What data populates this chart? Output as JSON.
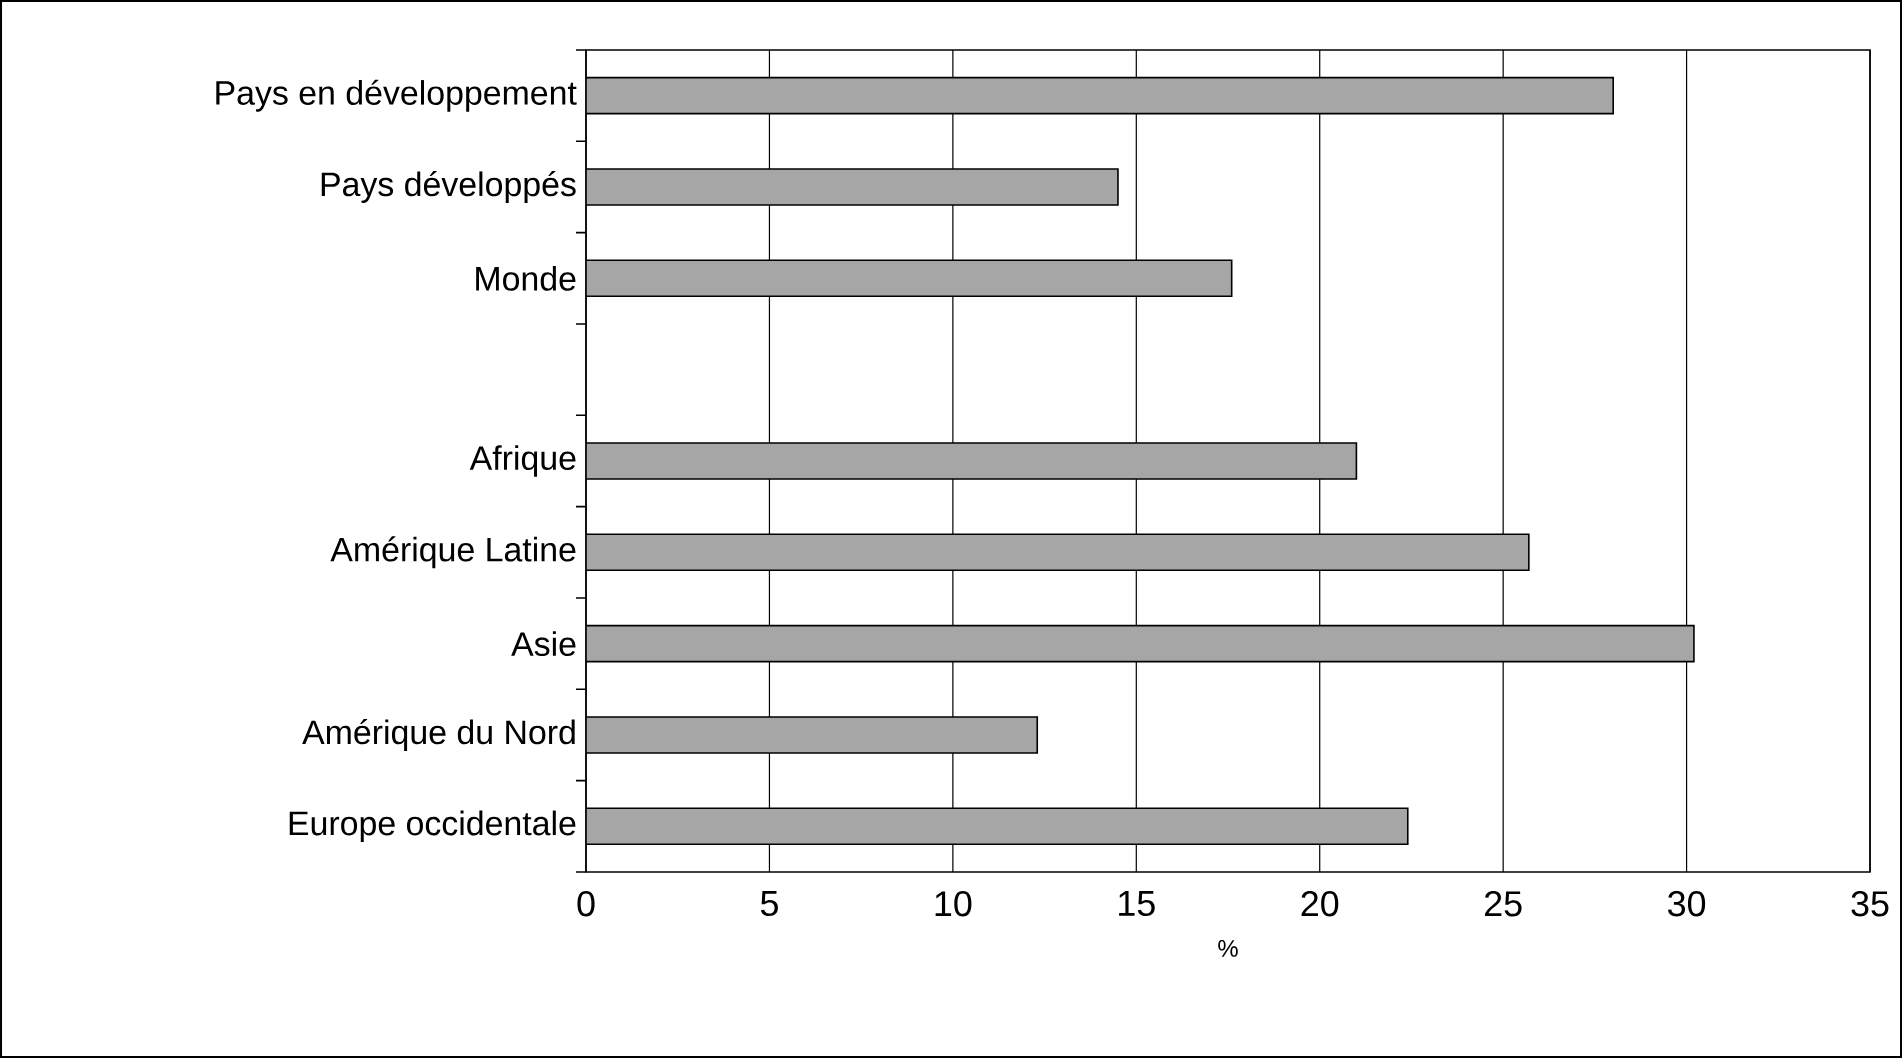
{
  "chart_data": {
    "type": "bar",
    "orientation": "horizontal",
    "xlabel": "%",
    "categories": [
      "Pays en développement",
      "Pays développés",
      "Monde",
      null,
      "Afrique",
      "Amérique Latine",
      "Asie",
      "Amérique du Nord",
      "Europe occidentale"
    ],
    "values": [
      28,
      14.5,
      17.6,
      null,
      21,
      25.7,
      30.2,
      12.3,
      22.4
    ],
    "color": "#a6a6a6",
    "xlim": [
      0,
      35
    ],
    "xticks": [
      0,
      5,
      10,
      15,
      20,
      25,
      30,
      35
    ],
    "grid": "x"
  }
}
